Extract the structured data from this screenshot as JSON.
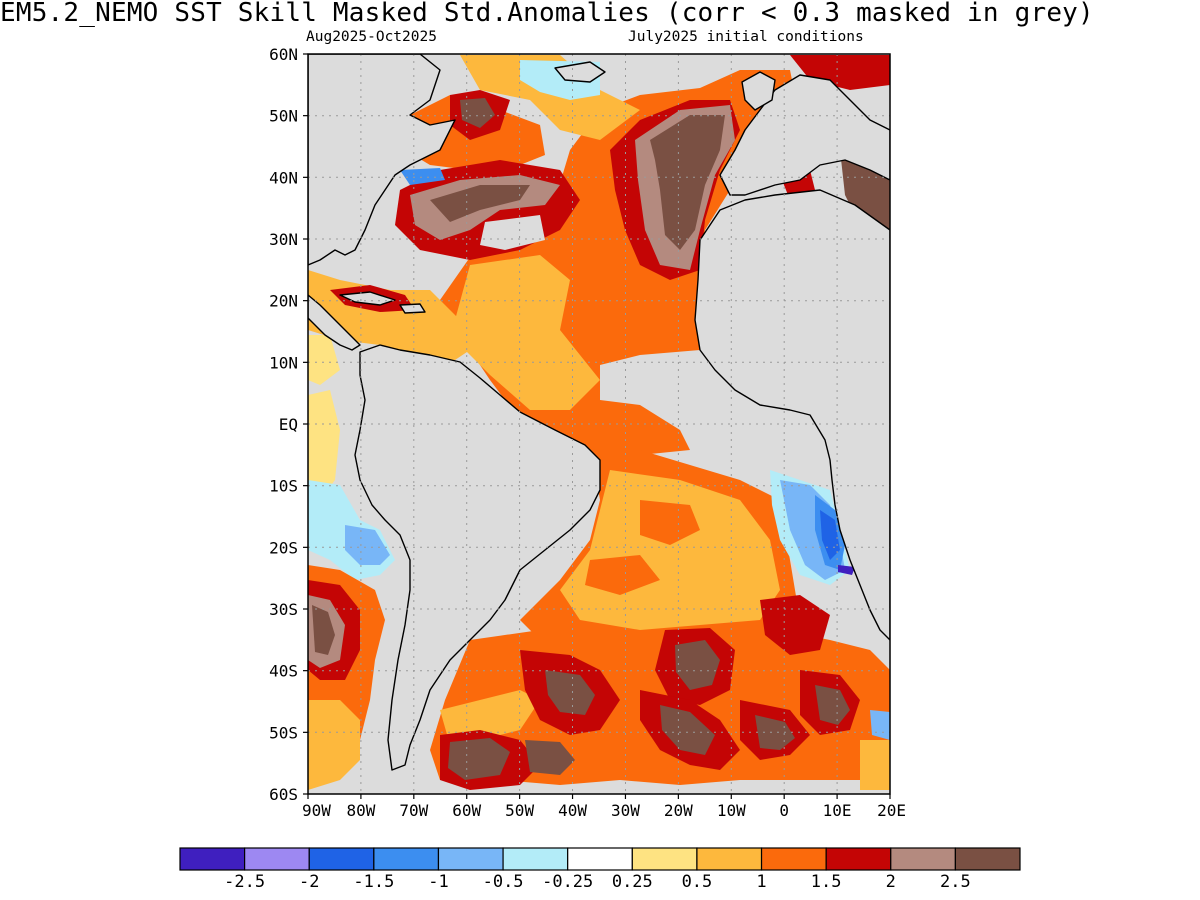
{
  "title": "EM5.2_NEMO  SST Skill Masked Std.Anomalies (corr < 0.3 masked in grey)",
  "subtitle_left": "Aug2025-Oct2025",
  "subtitle_right": "July2025 initial conditions",
  "map": {
    "lon_range": [
      -90,
      20
    ],
    "lat_range": [
      -60,
      60
    ],
    "mask_color": "#dcdcdc",
    "land_color": "#dcdcdc",
    "lat_ticks": [
      {
        "lat": 60,
        "label": "60N"
      },
      {
        "lat": 50,
        "label": "50N"
      },
      {
        "lat": 40,
        "label": "40N"
      },
      {
        "lat": 30,
        "label": "30N"
      },
      {
        "lat": 20,
        "label": "20N"
      },
      {
        "lat": 10,
        "label": "10N"
      },
      {
        "lat": 0,
        "label": "EQ"
      },
      {
        "lat": -10,
        "label": "10S"
      },
      {
        "lat": -20,
        "label": "20S"
      },
      {
        "lat": -30,
        "label": "30S"
      },
      {
        "lat": -40,
        "label": "40S"
      },
      {
        "lat": -50,
        "label": "50S"
      },
      {
        "lat": -60,
        "label": "60S"
      }
    ],
    "lon_ticks": [
      {
        "lon": -90,
        "label": "90W"
      },
      {
        "lon": -80,
        "label": "80W"
      },
      {
        "lon": -70,
        "label": "70W"
      },
      {
        "lon": -60,
        "label": "60W"
      },
      {
        "lon": -50,
        "label": "50W"
      },
      {
        "lon": -40,
        "label": "40W"
      },
      {
        "lon": -30,
        "label": "30W"
      },
      {
        "lon": -20,
        "label": "20W"
      },
      {
        "lon": -10,
        "label": "10W"
      },
      {
        "lon": 0,
        "label": "0"
      },
      {
        "lon": 10,
        "label": "10E"
      },
      {
        "lon": 20,
        "label": "20E"
      }
    ]
  },
  "colorbar": {
    "colors": [
      "#3f1fbf",
      "#9d88f2",
      "#1f63e6",
      "#3c8ef0",
      "#78b6f7",
      "#b3ecf8",
      "#ffffff",
      "#fee382",
      "#fdb83d",
      "#fb6a0c",
      "#c40505",
      "#b48a7f",
      "#7a5043"
    ],
    "labels": [
      "-2.5",
      "-2",
      "-1.5",
      "-1",
      "-0.5",
      "-0.25",
      "0.25",
      "0.5",
      "1",
      "1.5",
      "2",
      "2.5"
    ]
  }
}
